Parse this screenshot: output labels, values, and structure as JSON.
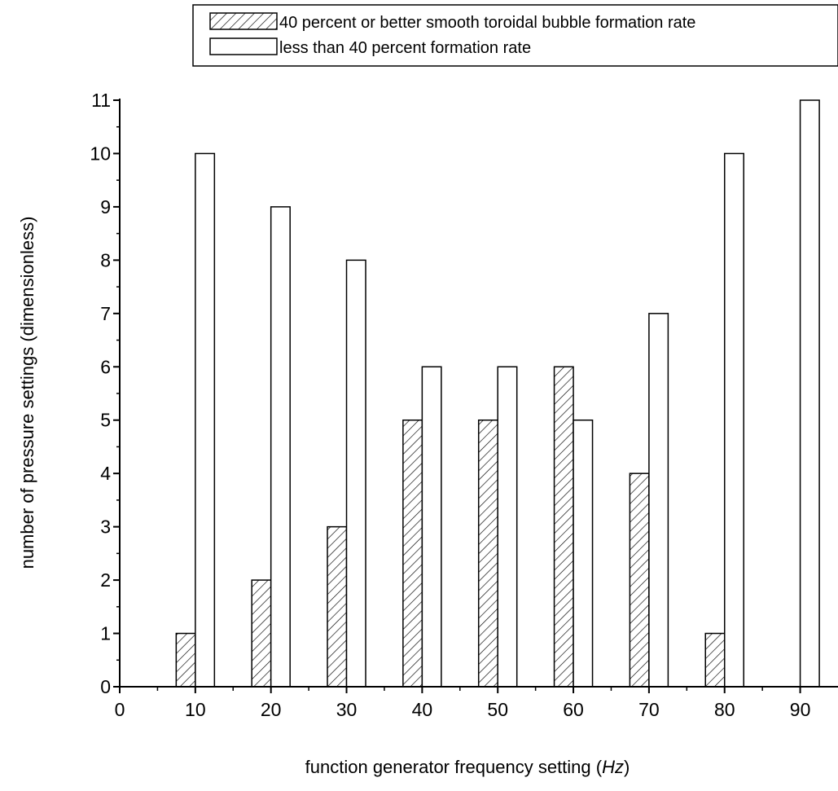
{
  "chart_data": {
    "type": "bar",
    "categories": [
      10,
      20,
      30,
      40,
      50,
      60,
      70,
      80,
      90
    ],
    "series": [
      {
        "name": "40 percent or better smooth toroidal bubble formation rate",
        "values": [
          1,
          2,
          3,
          5,
          5,
          6,
          4,
          1,
          0
        ],
        "pattern": "hatched"
      },
      {
        "name": "less than 40 percent formation rate",
        "values": [
          10,
          9,
          8,
          6,
          6,
          5,
          7,
          10,
          11
        ],
        "pattern": "open"
      }
    ],
    "xlabel_prefix": "function generator frequency setting (",
    "xlabel_unit": "Hz",
    "xlabel_suffix": ")",
    "ylabel": "number of pressure settings (dimensionless)",
    "xlim": [
      0,
      95
    ],
    "ylim": [
      0,
      11
    ],
    "x_ticks": [
      0,
      10,
      20,
      30,
      40,
      50,
      60,
      70,
      80,
      90
    ],
    "y_ticks": [
      0,
      1,
      2,
      3,
      4,
      5,
      6,
      7,
      8,
      9,
      10,
      11
    ],
    "grid": false,
    "legend_position": "top-right",
    "colors": {
      "bar_fill": "#ffffff",
      "stroke": "#000000"
    }
  }
}
